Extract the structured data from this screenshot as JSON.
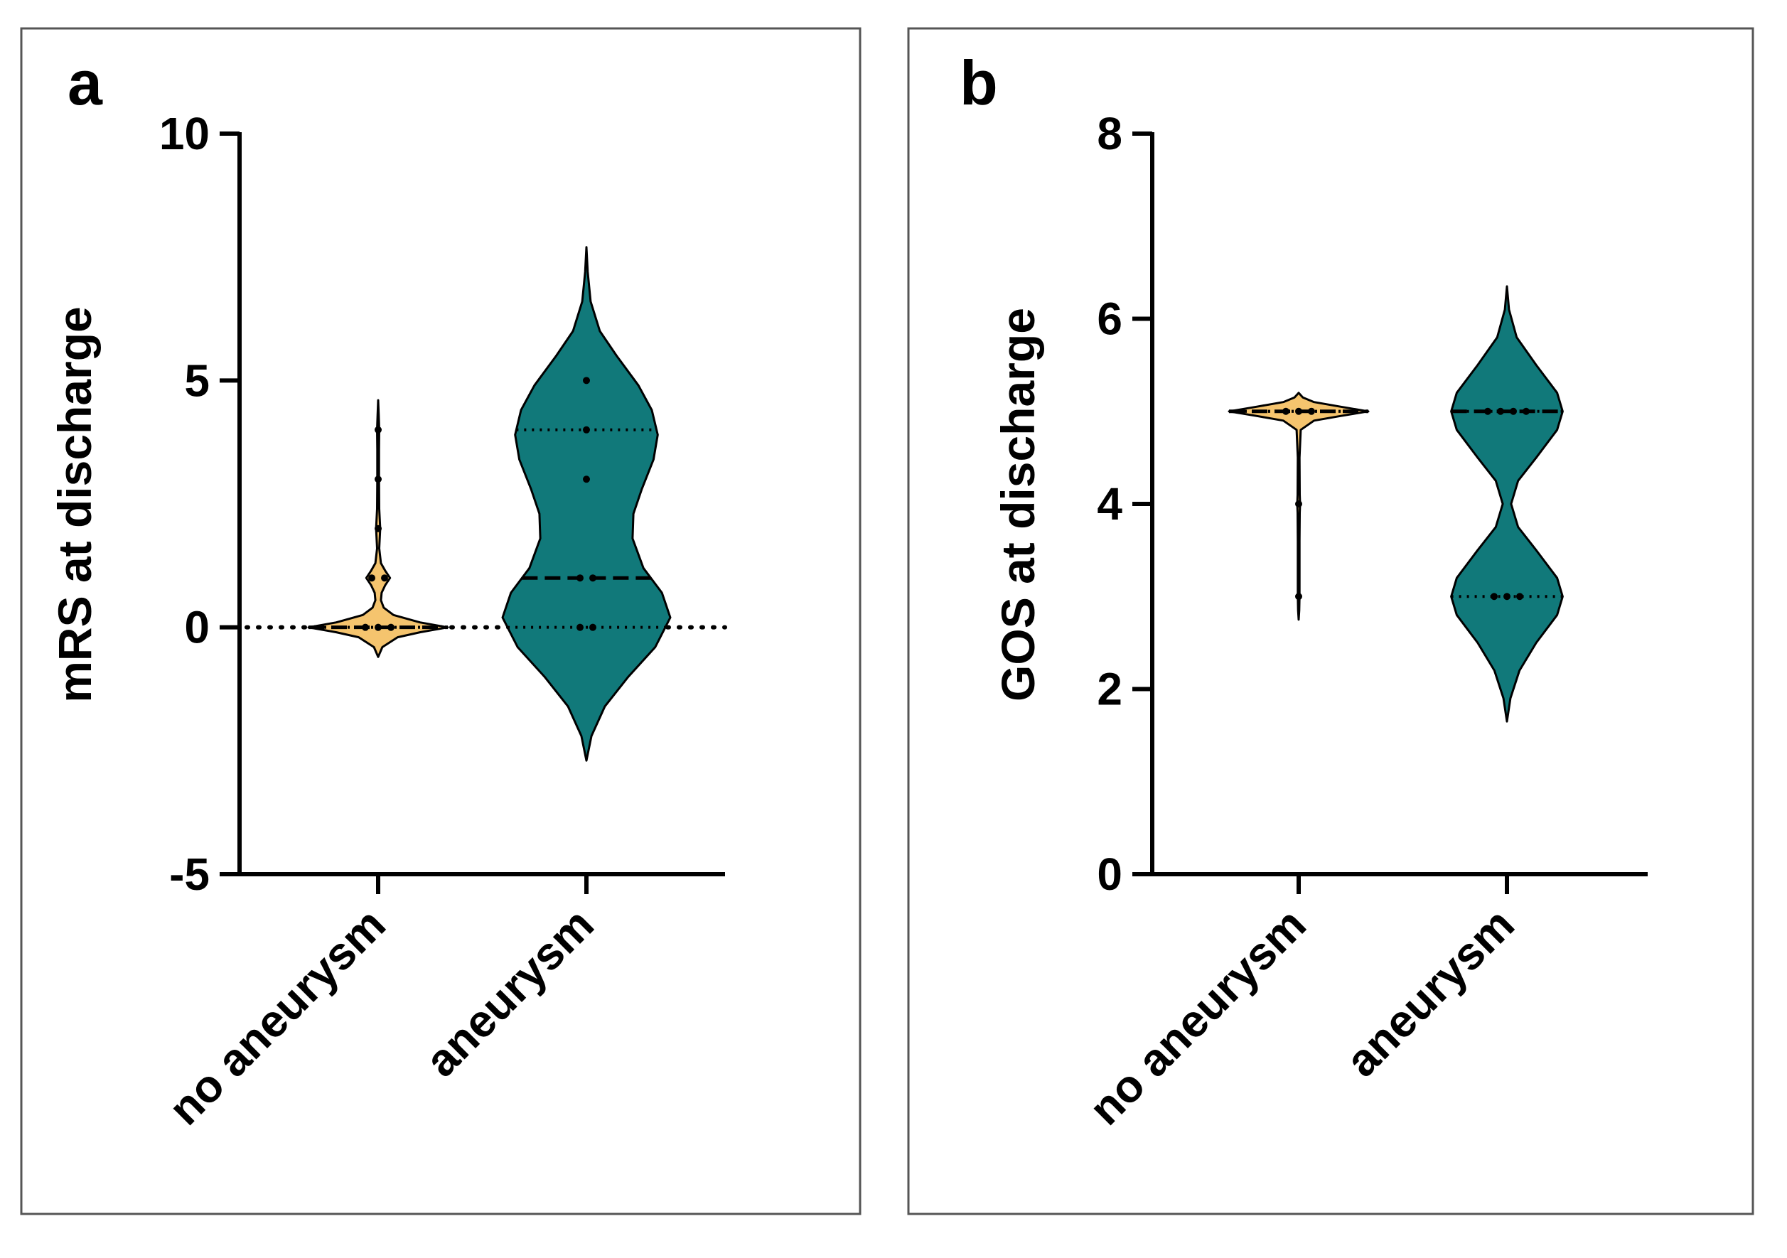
{
  "colors": {
    "no_aneurysm": "#f5c46e",
    "aneurysm": "#11797a",
    "axis": "#000000",
    "panel_border": "#555555"
  },
  "chart_data": [
    {
      "panel_label": "a",
      "type": "violin",
      "ylabel": "mRS at discharge",
      "xlabel": "",
      "ylim": [
        -5,
        10
      ],
      "yticks": [
        -5,
        0,
        5,
        10
      ],
      "categories": [
        "no aneurysm",
        "aneurysm"
      ],
      "reference_line": 0,
      "series": [
        {
          "category": "no aneurysm",
          "color_key": "no_aneurysm",
          "range": [
            -0.6,
            4.6
          ],
          "median": 0,
          "quartiles": [
            0,
            0
          ],
          "density": [
            [
              -0.6,
              0
            ],
            [
              -0.4,
              0.06
            ],
            [
              -0.2,
              0.28
            ],
            [
              -0.1,
              0.6
            ],
            [
              0,
              1.0
            ],
            [
              0.1,
              0.6
            ],
            [
              0.25,
              0.22
            ],
            [
              0.4,
              0.08
            ],
            [
              0.55,
              0.04
            ],
            [
              0.7,
              0.05
            ],
            [
              0.85,
              0.1
            ],
            [
              1.0,
              0.17
            ],
            [
              1.15,
              0.1
            ],
            [
              1.3,
              0.04
            ],
            [
              1.6,
              0.015
            ],
            [
              2.0,
              0.03
            ],
            [
              2.4,
              0.015
            ],
            [
              3.0,
              0.012
            ],
            [
              3.6,
              0.012
            ],
            [
              4.0,
              0.015
            ],
            [
              4.3,
              0.008
            ],
            [
              4.6,
              0
            ]
          ],
          "points": [
            0,
            0,
            0,
            1,
            1,
            2,
            3,
            4
          ]
        },
        {
          "category": "aneurysm",
          "color_key": "aneurysm",
          "range": [
            -2.7,
            7.7
          ],
          "median": 1,
          "quartiles": [
            0,
            4
          ],
          "density": [
            [
              -2.7,
              0
            ],
            [
              -2.2,
              0.06
            ],
            [
              -1.6,
              0.22
            ],
            [
              -1.0,
              0.5
            ],
            [
              -0.4,
              0.82
            ],
            [
              0.2,
              1.0
            ],
            [
              0.7,
              0.9
            ],
            [
              1.2,
              0.68
            ],
            [
              1.8,
              0.55
            ],
            [
              2.3,
              0.56
            ],
            [
              2.8,
              0.66
            ],
            [
              3.4,
              0.8
            ],
            [
              3.9,
              0.85
            ],
            [
              4.4,
              0.78
            ],
            [
              4.9,
              0.62
            ],
            [
              5.5,
              0.36
            ],
            [
              6.0,
              0.16
            ],
            [
              6.6,
              0.05
            ],
            [
              7.2,
              0.015
            ],
            [
              7.7,
              0
            ]
          ],
          "points": [
            0,
            0,
            1,
            1,
            3,
            4,
            5
          ]
        }
      ]
    },
    {
      "panel_label": "b",
      "type": "violin",
      "ylabel": "GOS at discharge",
      "xlabel": "",
      "ylim": [
        0,
        8
      ],
      "yticks": [
        0,
        2,
        4,
        6,
        8
      ],
      "categories": [
        "no aneurysm",
        "aneurysm"
      ],
      "series": [
        {
          "category": "no aneurysm",
          "color_key": "no_aneurysm",
          "range": [
            2.75,
            5.2
          ],
          "median": 5,
          "quartiles": [
            5,
            5
          ],
          "density": [
            [
              2.75,
              0
            ],
            [
              2.85,
              0.008
            ],
            [
              3.0,
              0.012
            ],
            [
              3.3,
              0.012
            ],
            [
              3.6,
              0.012
            ],
            [
              3.9,
              0.015
            ],
            [
              4.0,
              0.02
            ],
            [
              4.1,
              0.015
            ],
            [
              4.5,
              0.012
            ],
            [
              4.8,
              0.03
            ],
            [
              4.9,
              0.22
            ],
            [
              4.95,
              0.6
            ],
            [
              5.0,
              1.0
            ],
            [
              5.05,
              0.6
            ],
            [
              5.1,
              0.22
            ],
            [
              5.15,
              0.06
            ],
            [
              5.2,
              0
            ]
          ],
          "points": [
            3,
            4,
            5,
            5,
            5
          ]
        },
        {
          "category": "aneurysm",
          "color_key": "aneurysm",
          "range": [
            1.65,
            6.35
          ],
          "median": 5,
          "quartiles": [
            3,
            5
          ],
          "density": [
            [
              1.65,
              0
            ],
            [
              1.9,
              0.05
            ],
            [
              2.2,
              0.18
            ],
            [
              2.5,
              0.42
            ],
            [
              2.8,
              0.72
            ],
            [
              3.0,
              0.8
            ],
            [
              3.2,
              0.72
            ],
            [
              3.5,
              0.42
            ],
            [
              3.75,
              0.16
            ],
            [
              4.0,
              0.06
            ],
            [
              4.25,
              0.16
            ],
            [
              4.5,
              0.42
            ],
            [
              4.8,
              0.72
            ],
            [
              5.0,
              0.8
            ],
            [
              5.2,
              0.72
            ],
            [
              5.5,
              0.42
            ],
            [
              5.8,
              0.14
            ],
            [
              6.1,
              0.03
            ],
            [
              6.35,
              0
            ]
          ],
          "points": [
            3,
            3,
            3,
            5,
            5,
            5,
            5
          ]
        }
      ]
    }
  ]
}
